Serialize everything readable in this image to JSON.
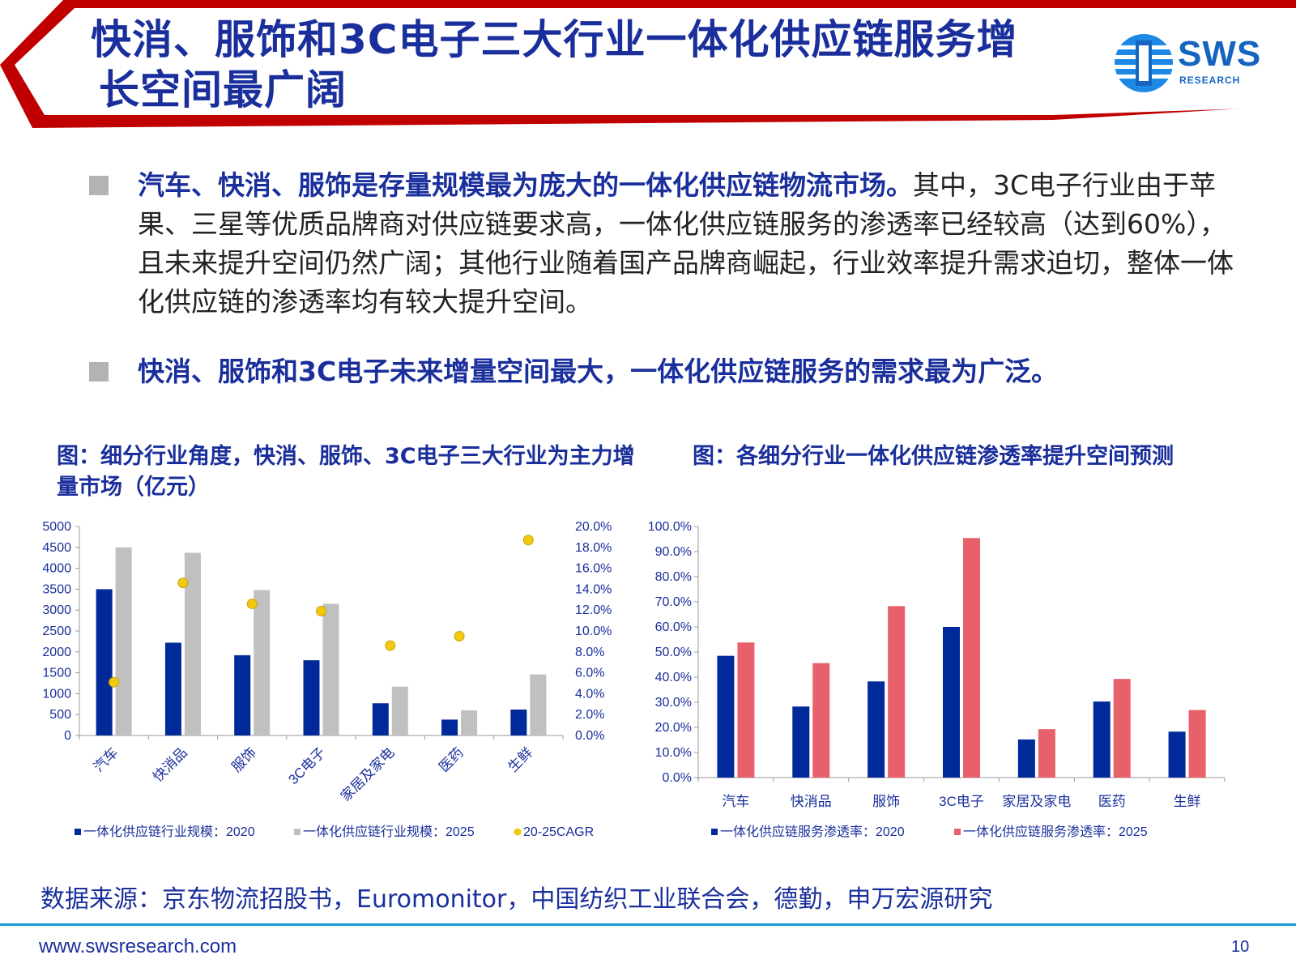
{
  "header": {
    "title_line1": "快消、服饰和3C电子三大行业一体化供应链服务增",
    "title_line2": "长空间最广阔",
    "logo_text": "SWS",
    "logo_sub": "RESEARCH",
    "accent_red": "#c00000",
    "accent_blue": "#1a2f9b"
  },
  "bullets": [
    {
      "emphasis": "汽车、快消、服饰是存量规模最为庞大的一体化供应链物流市场。",
      "rest": "其中，3C电子行业由于苹果、三星等优质品牌商对供应链要求高，一体化供应链服务的渗透率已经较高（达到60%），且未来提升空间仍然广阔；其他行业随着国产品牌商崛起，行业效率提升需求迫切，整体一体化供应链的渗透率均有较大提升空间。"
    },
    {
      "emphasis": "快消、服饰和3C电子未来增量空间最大，一体化供应链服务的需求最为广泛。",
      "rest": ""
    }
  ],
  "chart_titles": {
    "left": "图：细分行业角度，快消、服饰、3C电子三大行业为主力增量市场（亿元）",
    "right": "图：各细分行业一体化供应链渗透率提升空间预测"
  },
  "chart_data": [
    {
      "type": "bar",
      "categories": [
        "汽车",
        "快消品",
        "服饰",
        "3C电子",
        "家居及家电",
        "医药",
        "生鲜"
      ],
      "series": [
        {
          "name": "一体化供应链行业规模：2020",
          "values": [
            3500,
            2220,
            1920,
            1800,
            770,
            380,
            620
          ],
          "color": "#00299a",
          "axis": "left"
        },
        {
          "name": "一体化供应链行业规模：2025",
          "values": [
            4500,
            4370,
            3480,
            3150,
            1170,
            600,
            1460
          ],
          "color": "#c0c0c0",
          "axis": "left"
        },
        {
          "name": "20-25CAGR",
          "values": [
            5.1,
            14.6,
            12.6,
            11.9,
            8.6,
            9.5,
            18.7
          ],
          "color": "#f2c811",
          "axis": "right",
          "kind": "scatter"
        }
      ],
      "y_left": {
        "min": 0,
        "max": 5000,
        "ticks": [
          "0",
          "500",
          "1000",
          "1500",
          "2000",
          "2500",
          "3000",
          "3500",
          "4000",
          "4500",
          "5000"
        ]
      },
      "y_right": {
        "min": 0,
        "max": 20,
        "ticks": [
          "0.0%",
          "2.0%",
          "4.0%",
          "6.0%",
          "8.0%",
          "10.0%",
          "12.0%",
          "14.0%",
          "16.0%",
          "18.0%",
          "20.0%"
        ]
      },
      "legend_position": "bottom"
    },
    {
      "type": "bar",
      "categories": [
        "汽车",
        "快消品",
        "服饰",
        "3C电子",
        "家居及家电",
        "医药",
        "生鲜"
      ],
      "series": [
        {
          "name": "一体化供应链服务渗透率：2020",
          "values": [
            48.5,
            28.3,
            38.3,
            60.0,
            15.2,
            30.3,
            18.3
          ],
          "color": "#00299a"
        },
        {
          "name": "一体化供应链服务渗透率：2025",
          "values": [
            53.8,
            45.6,
            68.3,
            95.4,
            19.3,
            39.3,
            26.9
          ],
          "color": "#e8606a"
        }
      ],
      "y": {
        "min": 0,
        "max": 100,
        "ticks": [
          "0.0%",
          "10.0%",
          "20.0%",
          "30.0%",
          "40.0%",
          "50.0%",
          "60.0%",
          "70.0%",
          "80.0%",
          "90.0%",
          "100.0%"
        ]
      },
      "legend_position": "bottom"
    }
  ],
  "source": "数据来源：京东物流招股书，Euromonitor，中国纺织工业联合会，德勤，申万宏源研究",
  "footer": {
    "url": "www.swsresearch.com",
    "page": "10"
  }
}
